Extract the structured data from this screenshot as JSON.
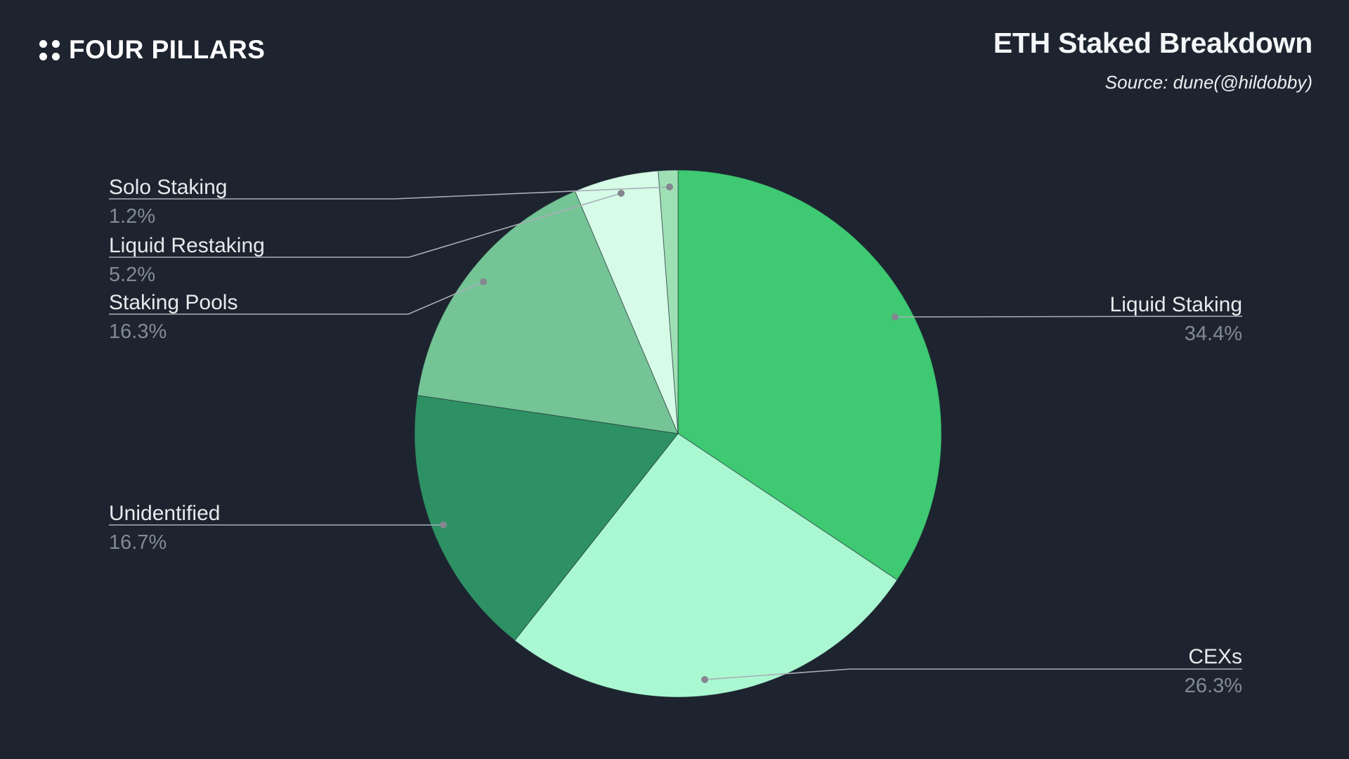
{
  "header": {
    "brand": "FOUR PILLARS",
    "title": "ETH Staked Breakdown",
    "source": "Source: dune(@hildobby)"
  },
  "colors": {
    "background": "#1d242f",
    "title_text": "#f4f6f8",
    "label_text": "#e7eaed",
    "percent_text": "#828a95",
    "leader_line": "#a9aeb6",
    "leader_dot": "#85868f"
  },
  "chart_data": {
    "type": "pie",
    "title": "ETH Staked Breakdown",
    "source": "dune(@hildobby)",
    "legend_position": "callout-labels",
    "slices": [
      {
        "label": "Liquid Staking",
        "value": 34.4,
        "display": "34.4%",
        "color": "#3ec972"
      },
      {
        "label": "CEXs",
        "value": 26.3,
        "display": "26.3%",
        "color": "#aaf8d2"
      },
      {
        "label": "Unidentified",
        "value": 16.7,
        "display": "16.7%",
        "color": "#2e9164"
      },
      {
        "label": "Staking Pools",
        "value": 16.3,
        "display": "16.3%",
        "color": "#74c496"
      },
      {
        "label": "Liquid Restaking",
        "value": 5.2,
        "display": "5.2%",
        "color": "#d6fbe7"
      },
      {
        "label": "Solo Staking",
        "value": 1.2,
        "display": "1.2%",
        "color": "#9ee0b4"
      }
    ]
  }
}
